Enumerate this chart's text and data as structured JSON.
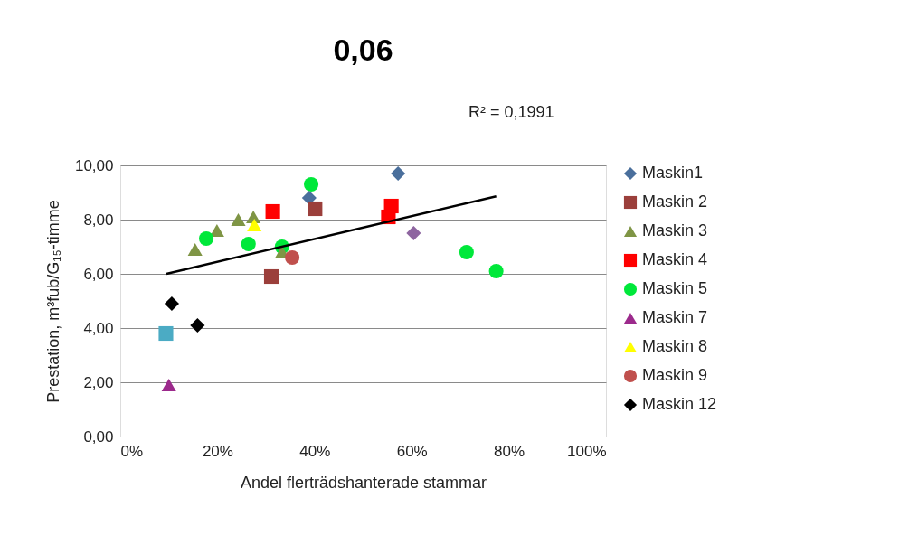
{
  "chart_data": {
    "type": "scatter",
    "title": "0,06",
    "annotations": [
      "R² = 0,1991"
    ],
    "xlabel": "Andel flerträdshanterade stammar",
    "ylabel": "Prestation, m³fub/G₁₅-timme",
    "xlim": [
      0,
      100
    ],
    "xticks": [
      {
        "value": 0,
        "label": "0%"
      },
      {
        "value": 20,
        "label": "20%"
      },
      {
        "value": 40,
        "label": "40%"
      },
      {
        "value": 60,
        "label": "60%"
      },
      {
        "value": 80,
        "label": "80%"
      },
      {
        "value": 100,
        "label": "100%"
      }
    ],
    "ylim": [
      0,
      10
    ],
    "yticks": [
      {
        "value": 0,
        "label": "0,00"
      },
      {
        "value": 2,
        "label": "2,00"
      },
      {
        "value": 4,
        "label": "4,00"
      },
      {
        "value": 6,
        "label": "6,00"
      },
      {
        "value": 8,
        "label": "8,00"
      },
      {
        "value": 10,
        "label": "10,00"
      }
    ],
    "grid": "y",
    "legend": "right",
    "series": [
      {
        "name": "Maskin1",
        "color": "#4a6f9c",
        "marker": "diamond",
        "x": [
          38.9,
          57.2
        ],
        "values": [
          8.8,
          9.7
        ]
      },
      {
        "name": "Maskin 2",
        "color": "#9b3f3b",
        "marker": "square",
        "x": [
          40.1,
          31.1
        ],
        "values": [
          8.4,
          5.9
        ]
      },
      {
        "name": "Maskin 3",
        "color": "#7f9545",
        "marker": "triangle",
        "x": [
          15.4,
          19.9,
          24.3,
          27.4,
          33.3
        ],
        "values": [
          6.9,
          7.6,
          8.0,
          8.1,
          6.8
        ]
      },
      {
        "name": "Maskin 4",
        "color": "#ff0000",
        "marker": "square",
        "x": [
          31.4,
          55.8,
          55.2
        ],
        "values": [
          8.3,
          8.5,
          8.1
        ]
      },
      {
        "name": "Maskin 5",
        "color": "#00e83a",
        "marker": "circle",
        "x": [
          39.3,
          17.7,
          26.4,
          33.3,
          71.3,
          77.4
        ],
        "values": [
          9.3,
          7.3,
          7.1,
          7.0,
          6.8,
          6.1
        ]
      },
      {
        "color": "#4babc4",
        "marker": "square",
        "x": [
          9.4
        ],
        "values": [
          3.8
        ]
      },
      {
        "name": "Maskin 7",
        "color": "#9c2a8c",
        "marker": "triangle",
        "x": [
          10.0
        ],
        "values": [
          1.9
        ]
      },
      {
        "name": "Maskin 8",
        "color": "#ffff00",
        "marker": "triangle",
        "x": [
          27.6
        ],
        "values": [
          7.8
        ]
      },
      {
        "name": "Maskin 9",
        "color": "#c0504d",
        "marker": "circle",
        "x": [
          35.4
        ],
        "values": [
          6.6
        ]
      },
      {
        "color": "#8e65a0",
        "marker": "diamond",
        "x": [
          60.4
        ],
        "values": [
          7.5
        ]
      },
      {
        "name": "Maskin 12",
        "color": "#000000",
        "marker": "diamond",
        "x": [
          10.6,
          15.9
        ],
        "values": [
          4.9,
          4.1
        ]
      },
      {
        "type": "line",
        "color": "#000000",
        "x": [
          9.5,
          77.4
        ],
        "values": [
          6.0,
          8.86
        ]
      }
    ]
  }
}
